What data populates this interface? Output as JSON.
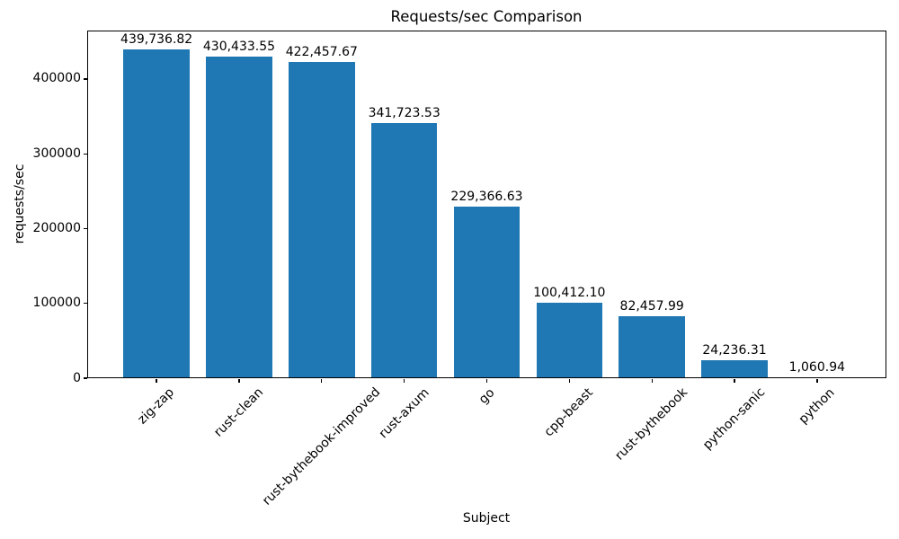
{
  "chart_data": {
    "type": "bar",
    "title": "Requests/sec Comparison",
    "xlabel": "Subject",
    "ylabel": "requests/sec",
    "categories": [
      "zig-zap",
      "rust-clean",
      "rust-bythebook-improved",
      "rust-axum",
      "go",
      "cpp-beast",
      "rust-bythebook",
      "python-sanic",
      "python"
    ],
    "values": [
      439736.82,
      430433.55,
      422457.67,
      341723.53,
      229366.63,
      100412.1,
      82457.99,
      24236.31,
      1060.94
    ],
    "value_labels": [
      "439,736.82",
      "430,433.55",
      "422,457.67",
      "341,723.53",
      "229,366.63",
      "100,412.10",
      "82,457.99",
      "24,236.31",
      "1,060.94"
    ],
    "yticks": [
      0,
      100000,
      200000,
      300000,
      400000
    ],
    "ytick_labels": [
      "0",
      "100000",
      "200000",
      "300000",
      "400000"
    ],
    "ylim": [
      0,
      464850
    ],
    "xtick_rotation_deg": 45,
    "bar_width_fraction": 0.8,
    "bar_color": "#1f77b4",
    "text_color": "#000000",
    "grid": false,
    "legend": null
  }
}
